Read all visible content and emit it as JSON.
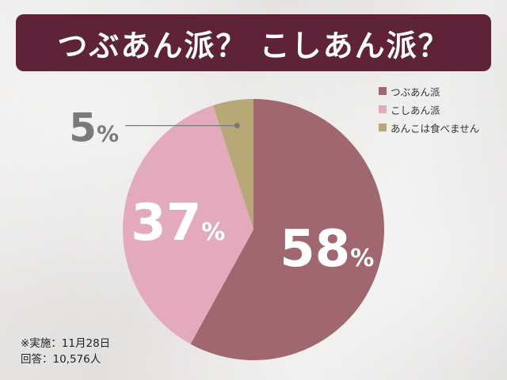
{
  "header": {
    "title": "つぶあん派？ こしあん派？"
  },
  "colors": {
    "header_bg": "#5e2338",
    "tsubuan": "#a0686e",
    "koshian": "#e3a9bc",
    "none": "#b8a877"
  },
  "chart_data": {
    "type": "pie",
    "title": "つぶあん派？ こしあん派？",
    "start_angle_deg": 0,
    "direction": "clockwise",
    "slices": [
      {
        "label": "つぶあん派",
        "value": 58,
        "display": "58",
        "unit": "%",
        "color": "#a0686e"
      },
      {
        "label": "こしあん派",
        "value": 37,
        "display": "37",
        "unit": "%",
        "color": "#e3a9bc"
      },
      {
        "label": "あんこは食べません",
        "value": 5,
        "display": "5",
        "unit": "%",
        "color": "#b8a877"
      }
    ],
    "legend_position": "top-right"
  },
  "footnote": {
    "date_line": "※実施：11月28日",
    "respondents_line": "回答：10,576人"
  }
}
